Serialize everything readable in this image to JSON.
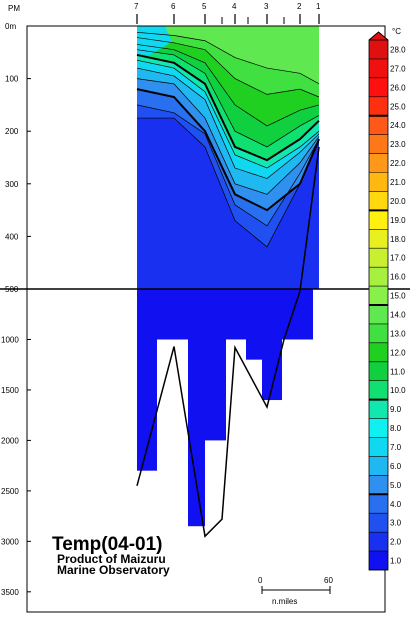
{
  "chart_data": {
    "type": "heatmap",
    "title": "Temp(04-01)",
    "subtitle_line1": "Product of Maizuru",
    "subtitle_line2": "Marine Observatory",
    "top_axis_label": "PM",
    "stations": [
      "7",
      "6",
      "5",
      "4",
      "3",
      "2",
      "1"
    ],
    "depth_ticks_upper": [
      "0m",
      "100",
      "200",
      "300",
      "400",
      "500"
    ],
    "depth_ticks_lower": [
      "1000",
      "1500",
      "2000",
      "2500",
      "3000",
      "3500"
    ],
    "depth_range_upper_m": [
      0,
      500
    ],
    "depth_range_lower_m": [
      500,
      3700
    ],
    "colorbar_unit": "°C",
    "colorbar_levels": [
      "1.0",
      "2.0",
      "3.0",
      "4.0",
      "5.0",
      "6.0",
      "7.0",
      "8.0",
      "9.0",
      "10.0",
      "11.0",
      "12.0",
      "13.0",
      "14.0",
      "15.0",
      "16.0",
      "17.0",
      "18.0",
      "19.0",
      "20.0",
      "21.0",
      "22.0",
      "23.0",
      "24.0",
      "25.0",
      "26.0",
      "27.0",
      "28.0"
    ],
    "colorbar_top_label": "26.0",
    "colorbar_colors": [
      "#1010f0",
      "#1a30f0",
      "#2050f0",
      "#2870f0",
      "#3090f0",
      "#20b8f0",
      "#10d8f0",
      "#10f0f0",
      "#10e8b0",
      "#10e070",
      "#10d040",
      "#20d020",
      "#40e040",
      "#60e850",
      "#88f048",
      "#a8f040",
      "#c8f030",
      "#e8f020",
      "#fff010",
      "#ffd810",
      "#ffb810",
      "#ff9818",
      "#ff7818",
      "#ff5818",
      "#ff3010",
      "#ff1010",
      "#f01010",
      "#e01010"
    ],
    "scale_bar": {
      "start_label": "0",
      "end_label": "60",
      "unit": "n.miles"
    },
    "bottom_depth_m": [
      2450,
      1070,
      2950,
      2780,
      1080,
      1670,
      1000,
      520,
      230
    ],
    "sections": [
      {
        "name": "10°C isotherm",
        "x_nmi": [
          0,
          14,
          24,
          30,
          38,
          48,
          58
        ],
        "depth_m": [
          70,
          85,
          120,
          235,
          265,
          225,
          210
        ]
      },
      {
        "name": "5°C isotherm",
        "x_nmi": [
          0,
          14,
          24,
          30,
          38,
          48,
          58
        ],
        "depth_m": [
          100,
          125,
          200,
          320,
          350,
          300,
          215
        ]
      }
    ]
  }
}
